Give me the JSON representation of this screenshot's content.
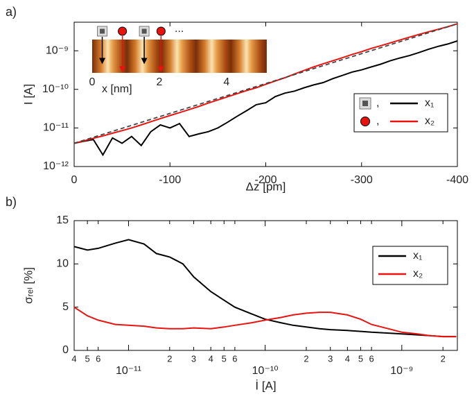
{
  "chart_data": [
    {
      "type": "line",
      "panel_label": "a)",
      "xlabel": "Δz [pm]",
      "ylabel": "I [A]",
      "log_y": true,
      "xlim": [
        0,
        -400
      ],
      "xticks": [
        0,
        -100,
        -200,
        -300,
        -400
      ],
      "ylim": [
        1e-12,
        5.5e-09
      ],
      "yticks": [
        {
          "value": 1e-12,
          "label": "10⁻¹²"
        },
        {
          "value": 1e-11,
          "label": "10⁻¹¹"
        },
        {
          "value": 1e-10,
          "label": "10⁻¹⁰"
        },
        {
          "value": 1e-09,
          "label": "10⁻⁹"
        }
      ],
      "legend_position": "right",
      "legend_separator": ",",
      "x": [
        0,
        -10,
        -20,
        -30,
        -40,
        -50,
        -60,
        -70,
        -80,
        -90,
        -100,
        -110,
        -120,
        -130,
        -140,
        -150,
        -160,
        -170,
        -180,
        -190,
        -200,
        -210,
        -220,
        -230,
        -240,
        -250,
        -260,
        -270,
        -280,
        -290,
        -300,
        -310,
        -320,
        -330,
        -340,
        -350,
        -360,
        -370,
        -380,
        -390,
        -400
      ],
      "series": [
        {
          "name": "x₁",
          "color": "#000000",
          "marker": "square",
          "marker_color": "#555555",
          "values": [
            4e-12,
            4.5e-12,
            5e-12,
            2e-12,
            5.5e-12,
            4e-12,
            6e-12,
            3.5e-12,
            8e-12,
            1.2e-11,
            1e-11,
            1.3e-11,
            6e-12,
            7e-12,
            8e-12,
            1e-11,
            1.4e-11,
            2e-11,
            2.8e-11,
            4e-11,
            4.5e-11,
            6.5e-11,
            8e-11,
            9e-11,
            1.1e-10,
            1.3e-10,
            1.5e-10,
            1.9e-10,
            2.3e-10,
            2.8e-10,
            3.2e-10,
            3.8e-10,
            4.5e-10,
            5.5e-10,
            6.5e-10,
            7.5e-10,
            9e-10,
            1.1e-09,
            1.3e-09,
            1.5e-09,
            1.8e-09
          ]
        },
        {
          "name": "x₂",
          "color": "#e8130f",
          "marker": "circle",
          "marker_color": "#e8130f",
          "values": [
            4e-12,
            4.6e-12,
            5.4e-12,
            6.2e-12,
            7.3e-12,
            8.5e-12,
            1e-11,
            1.2e-11,
            1.45e-11,
            1.75e-11,
            2.1e-11,
            2.5e-11,
            3e-11,
            3.6e-11,
            4.4e-11,
            5.3e-11,
            6.4e-11,
            7.7e-11,
            9.3e-11,
            1.1e-10,
            1.35e-10,
            1.65e-10,
            2e-10,
            2.5e-10,
            3.1e-10,
            3.8e-10,
            4.6e-10,
            5.5e-10,
            6.6e-10,
            8e-10,
            9.5e-10,
            1.15e-09,
            1.35e-09,
            1.6e-09,
            1.9e-09,
            2.25e-09,
            2.65e-09,
            3.1e-09,
            3.6e-09,
            4.2e-09,
            5e-09
          ]
        },
        {
          "color": "#444444",
          "dashed": true,
          "x": [
            0,
            -400
          ],
          "values": [
            4e-12,
            5e-09
          ]
        }
      ],
      "inset": {
        "xlabel": "x [nm]",
        "xlim": [
          0,
          5.2
        ],
        "xticks": [
          0,
          2,
          4
        ],
        "ellipsis": "...",
        "markers": [
          {
            "shape": "square",
            "x": 0.3
          },
          {
            "shape": "circle",
            "x": 0.9
          },
          {
            "shape": "square",
            "x": 1.55
          },
          {
            "shape": "circle",
            "x": 2.05
          }
        ]
      }
    },
    {
      "type": "line",
      "panel_label": "b)",
      "xlabel": "İ [A]",
      "ylabel": "σᵣₑₗ [%]",
      "log_x": true,
      "xlim": [
        4e-12,
        2.55e-09
      ],
      "xticks": [
        {
          "value": 4e-12,
          "label": "4"
        },
        {
          "value": 5e-12,
          "label": "5"
        },
        {
          "value": 6e-12,
          "label": "6"
        },
        {
          "value": 1e-11,
          "label": "10⁻¹¹"
        },
        {
          "value": 2e-11,
          "label": "2"
        },
        {
          "value": 3e-11,
          "label": "3"
        },
        {
          "value": 4e-11,
          "label": "4"
        },
        {
          "value": 5e-11,
          "label": "5"
        },
        {
          "value": 6e-11,
          "label": "6"
        },
        {
          "value": 1e-10,
          "label": "10⁻¹⁰"
        },
        {
          "value": 2e-10,
          "label": "2"
        },
        {
          "value": 3e-10,
          "label": "3"
        },
        {
          "value": 4e-10,
          "label": "4"
        },
        {
          "value": 5e-10,
          "label": "5"
        },
        {
          "value": 6e-10,
          "label": "6"
        },
        {
          "value": 1e-09,
          "label": "10⁻⁹"
        },
        {
          "value": 2e-09,
          "label": "2"
        }
      ],
      "ylim": [
        0,
        15
      ],
      "yticks": [
        0,
        5,
        10,
        15
      ],
      "legend_position": "right",
      "x": [
        4e-12,
        5e-12,
        6e-12,
        8e-12,
        1e-11,
        1.3e-11,
        1.6e-11,
        2e-11,
        2.5e-11,
        3e-11,
        4e-11,
        5e-11,
        6e-11,
        8e-11,
        1e-10,
        1.3e-10,
        1.6e-10,
        2e-10,
        2.5e-10,
        3e-10,
        4e-10,
        5e-10,
        6e-10,
        8e-10,
        1e-09,
        1.3e-09,
        1.6e-09,
        2e-09,
        2.5e-09
      ],
      "series": [
        {
          "name": "x₁",
          "color": "#000000",
          "values": [
            12,
            11.6,
            11.8,
            12.4,
            12.8,
            12.3,
            11.2,
            10.8,
            10,
            8.5,
            6.8,
            5.8,
            5,
            4.2,
            3.6,
            3.2,
            2.9,
            2.7,
            2.5,
            2.4,
            2.3,
            2.2,
            2.1,
            2,
            1.9,
            1.8,
            1.7,
            1.6,
            1.6
          ]
        },
        {
          "name": "x₂",
          "color": "#e8130f",
          "values": [
            5,
            4,
            3.5,
            3,
            2.9,
            2.8,
            2.6,
            2.5,
            2.5,
            2.6,
            2.5,
            2.7,
            2.9,
            3.2,
            3.5,
            3.8,
            4.1,
            4.3,
            4.4,
            4.4,
            4.1,
            3.6,
            3,
            2.5,
            2.1,
            1.9,
            1.7,
            1.6,
            1.6
          ]
        }
      ]
    }
  ]
}
